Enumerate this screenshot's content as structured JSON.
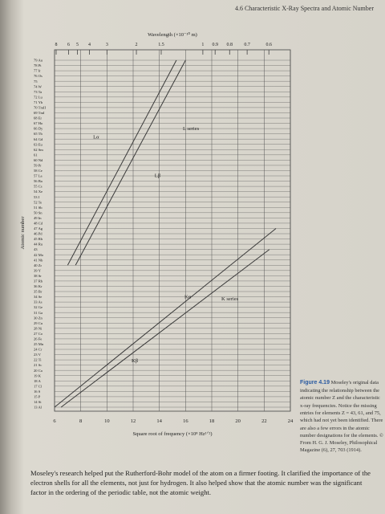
{
  "header": {
    "title": "4.6 Characteristic X-Ray Spectra and Atomic Number"
  },
  "chart_data": {
    "type": "line",
    "x2label": "Wavelength (×10⁻¹⁰ m)",
    "xlabel": "Square root of frequency (×10⁸ Hz¹ᐟ²)",
    "ylabel": "Atomic number",
    "xlim": [
      6,
      24
    ],
    "xticks": [
      6,
      8,
      10,
      12,
      14,
      16,
      18,
      20,
      22,
      24
    ],
    "x2ticks": [
      8,
      6,
      5,
      4,
      3,
      2,
      1.5,
      1,
      0.9,
      0.8,
      0.7,
      0.6
    ],
    "ylim": [
      13,
      79
    ],
    "yticks": [
      {
        "value": 79,
        "label": "79 Au"
      },
      {
        "value": 78,
        "label": "78 Pt"
      },
      {
        "value": 77,
        "label": "77 Ir"
      },
      {
        "value": 76,
        "label": "76 Os"
      },
      75,
      {
        "value": 74,
        "label": "74 W"
      },
      {
        "value": 73,
        "label": "73 Ta"
      },
      {
        "value": 72,
        "label": "72 Lu"
      },
      {
        "value": 71,
        "label": "71 Yb"
      },
      {
        "value": 70,
        "label": "70 TmII"
      },
      {
        "value": 69,
        "label": "69 TmI"
      },
      {
        "value": 68,
        "label": "68 Er"
      },
      {
        "value": 67,
        "label": "67 Ho"
      },
      {
        "value": 66,
        "label": "66 Dy"
      },
      {
        "value": 65,
        "label": "65 Tb"
      },
      {
        "value": 64,
        "label": "64 Gd"
      },
      {
        "value": 63,
        "label": "63 Eu"
      },
      {
        "value": 62,
        "label": "62 Sm"
      },
      61,
      {
        "value": 60,
        "label": "60 Nd"
      },
      {
        "value": 59,
        "label": "59 Pr"
      },
      {
        "value": 58,
        "label": "58 Ce"
      },
      {
        "value": 57,
        "label": "57 La"
      },
      {
        "value": 56,
        "label": "56 Ba"
      },
      {
        "value": 55,
        "label": "55 Cs"
      },
      {
        "value": 54,
        "label": "54 Xe"
      },
      {
        "value": 53,
        "label": "53 I"
      },
      {
        "value": 52,
        "label": "52 Te"
      },
      {
        "value": 51,
        "label": "51 Sb"
      },
      {
        "value": 50,
        "label": "50 Sn"
      },
      {
        "value": 49,
        "label": "49 In"
      },
      {
        "value": 48,
        "label": "48 Cd"
      },
      {
        "value": 47,
        "label": "47 Ag"
      },
      {
        "value": 46,
        "label": "46 Pd"
      },
      {
        "value": 45,
        "label": "45 Rh"
      },
      {
        "value": 44,
        "label": "44 Ru"
      },
      43,
      {
        "value": 42,
        "label": "42 Mo"
      },
      {
        "value": 41,
        "label": "41 Nb"
      },
      {
        "value": 40,
        "label": "40 Zr"
      },
      {
        "value": 39,
        "label": "39 Y"
      },
      {
        "value": 38,
        "label": "38 Sr"
      },
      {
        "value": 37,
        "label": "37 Rb"
      },
      {
        "value": 36,
        "label": "36 Kr"
      },
      {
        "value": 35,
        "label": "35 Br"
      },
      {
        "value": 34,
        "label": "34 Se"
      },
      {
        "value": 33,
        "label": "33 As"
      },
      {
        "value": 32,
        "label": "32 Ge"
      },
      {
        "value": 31,
        "label": "31 Ga"
      },
      {
        "value": 30,
        "label": "30 Zn"
      },
      {
        "value": 29,
        "label": "29 Cu"
      },
      {
        "value": 28,
        "label": "28 Ni"
      },
      {
        "value": 27,
        "label": "27 Co"
      },
      {
        "value": 26,
        "label": "26 Fe"
      },
      {
        "value": 25,
        "label": "25 Mn"
      },
      {
        "value": 24,
        "label": "24 Cr"
      },
      {
        "value": 23,
        "label": "23 V"
      },
      {
        "value": 22,
        "label": "22 Ti"
      },
      {
        "value": 21,
        "label": "21 Sc"
      },
      {
        "value": 20,
        "label": "20 Ca"
      },
      {
        "value": 19,
        "label": "19 K"
      },
      {
        "value": 18,
        "label": "18 A"
      },
      {
        "value": 17,
        "label": "17 Cl"
      },
      {
        "value": 16,
        "label": "16 S"
      },
      {
        "value": 15,
        "label": "15 P"
      },
      {
        "value": 14,
        "label": "14 Si"
      },
      {
        "value": 13,
        "label": "13 Al"
      }
    ],
    "grid": true,
    "series": [
      {
        "name": "Lα",
        "color": "#3a3a3a",
        "x": [
          7.0,
          15.3
        ],
        "values": [
          40,
          79
        ]
      },
      {
        "name": "Lβ",
        "color": "#3a3a3a",
        "x": [
          7.6,
          16.0
        ],
        "values": [
          40,
          79
        ]
      },
      {
        "name": "Kα",
        "color": "#3a3a3a",
        "x": [
          6.0,
          22.9
        ],
        "values": [
          13,
          47
        ]
      },
      {
        "name": "Kβ",
        "color": "#3a3a3a",
        "x": [
          6.5,
          22.4
        ],
        "values": [
          13,
          43
        ]
      }
    ],
    "annotations": [
      "L series",
      "K series"
    ]
  },
  "caption": {
    "label": "Figure 4.19",
    "text": "Moseley's original data indicating the relationship between the atomic number Z and the characteristic x-ray frequencies. Notice the missing entries for elements Z = 43, 61, and 75, which had not yet been identified. There are also a few errors in the atomic number designations for the elements. © From H. G. J. Moseley, Philosophical Magazine (6), 27, 703 (1914)."
  },
  "body": "Moseley's research helped put the Rutherford-Bohr model of the atom on a firmer footing. It clarified the importance of the electron shells for all the elements, not just for hydrogen. It also helped show that the atomic number was the significant factor in the ordering of the periodic table, not the atomic weight."
}
